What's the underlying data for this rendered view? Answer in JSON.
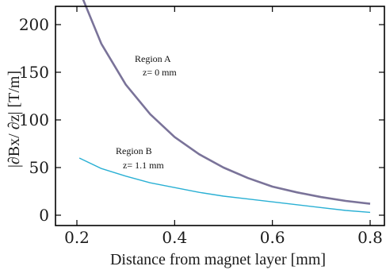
{
  "chart_data": {
    "type": "line",
    "xlabel": "Distance from magnet layer [mm]",
    "ylabel": "|∂Bx/ ∂z| [T/m]",
    "xlim": [
      0.2,
      0.8
    ],
    "ylim": [
      0,
      240
    ],
    "xticks": [
      0.2,
      0.4,
      0.6,
      0.8
    ],
    "yticks": [
      0,
      50,
      100,
      150,
      200
    ],
    "grid": false,
    "series": [
      {
        "name": "Region A",
        "annotation": [
          "Region A",
          "z= 0 mm"
        ],
        "color": "#7a7399",
        "x": [
          0.205,
          0.25,
          0.3,
          0.35,
          0.4,
          0.45,
          0.5,
          0.55,
          0.6,
          0.65,
          0.7,
          0.75,
          0.8
        ],
        "y": [
          236,
          180,
          137,
          106,
          82,
          64,
          50,
          39,
          30,
          24,
          19,
          15,
          12
        ]
      },
      {
        "name": "Region B",
        "annotation": [
          "Region B",
          "z= 1.1 mm"
        ],
        "color": "#2ab0d4",
        "x": [
          0.205,
          0.25,
          0.3,
          0.35,
          0.4,
          0.45,
          0.5,
          0.55,
          0.6,
          0.65,
          0.7,
          0.75,
          0.8
        ],
        "y": [
          60,
          49,
          41,
          34,
          29,
          24,
          20,
          17,
          14,
          11,
          8,
          5,
          3
        ]
      }
    ]
  }
}
